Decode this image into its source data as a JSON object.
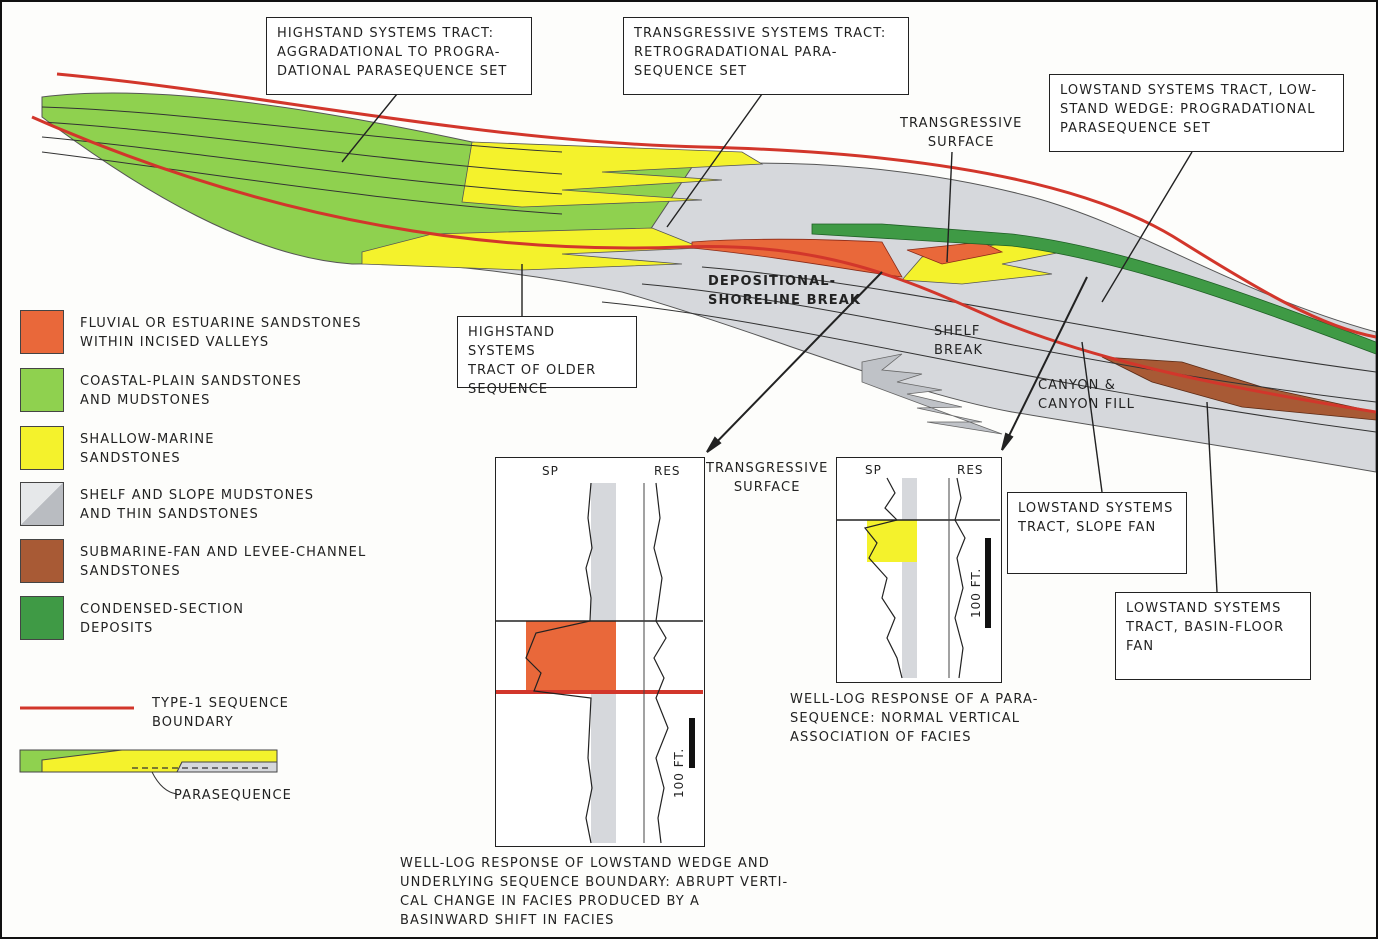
{
  "colors": {
    "fluvial": "#e9683a",
    "coastal": "#8fd14f",
    "shallow_marine": "#f4f22c",
    "shelf_slope": "#d6d8dc",
    "submarine_fan": "#a85a35",
    "condensed": "#3f9a45",
    "boundary": "#d2362b"
  },
  "callouts": {
    "highstand_top": "HIGHSTAND SYSTEMS TRACT:\nAGGRADATIONAL TO PROGRA-\nDATIONAL PARASEQUENCE SET",
    "transgressive_top": "TRANSGRESSIVE SYSTEMS TRACT:\nRETROGRADATIONAL PARA-\nSEQUENCE SET",
    "lowstand_wedge": "LOWSTAND SYSTEMS TRACT, LOW-\nSTAND WEDGE: PROGRADATIONAL\nPARASEQUENCE SET",
    "highstand_older": "HIGHSTAND SYSTEMS\nTRACT OF OLDER\nSEQUENCE",
    "slope_fan": "LOWSTAND SYSTEMS\nTRACT, SLOPE FAN",
    "basin_floor_fan": "LOWSTAND SYSTEMS\nTRACT, BASIN-FLOOR\nFAN"
  },
  "labels": {
    "transgressive_surface": "TRANSGRESSIVE\nSURFACE",
    "depositional_break": "DEPOSITIONAL-\nSHORELINE BREAK",
    "shelf_break": "SHELF\nBREAK",
    "canyon": "CANYON &\nCANYON FILL",
    "log_transgressive_surface": "TRANSGRESSIVE\nSURFACE"
  },
  "legend": {
    "items": [
      {
        "text": "FLUVIAL OR ESTUARINE SANDSTONES\nWITHIN INCISED VALLEYS",
        "color": "#e9683a"
      },
      {
        "text": "COASTAL-PLAIN SANDSTONES\nAND MUDSTONES",
        "color": "#8fd14f"
      },
      {
        "text": "SHALLOW-MARINE\nSANDSTONES",
        "color": "#f4f22c"
      },
      {
        "text": "SHELF AND SLOPE MUDSTONES\nAND THIN SANDSTONES",
        "color": "#d6d8dc"
      },
      {
        "text": "SUBMARINE-FAN AND LEVEE-CHANNEL\nSANDSTONES",
        "color": "#a85a35"
      },
      {
        "text": "CONDENSED-SECTION\nDEPOSITS",
        "color": "#3f9a45"
      }
    ],
    "boundary_label": "TYPE-1 SEQUENCE\nBOUNDARY",
    "parasequence_label": "PARASEQUENCE"
  },
  "log_left": {
    "sp": "SP",
    "res": "RES",
    "scale": "100 FT.",
    "caption": "WELL-LOG RESPONSE OF LOWSTAND WEDGE AND\nUNDERLYING SEQUENCE BOUNDARY:  ABRUPT VERTI-\nCAL CHANGE IN FACIES PRODUCED BY A\nBASINWARD SHIFT IN FACIES"
  },
  "log_right": {
    "sp": "SP",
    "res": "RES",
    "scale": "100 FT.",
    "caption": "WELL-LOG RESPONSE OF A PARA-\nSEQUENCE:  NORMAL VERTICAL\nASSOCIATION OF FACIES"
  }
}
